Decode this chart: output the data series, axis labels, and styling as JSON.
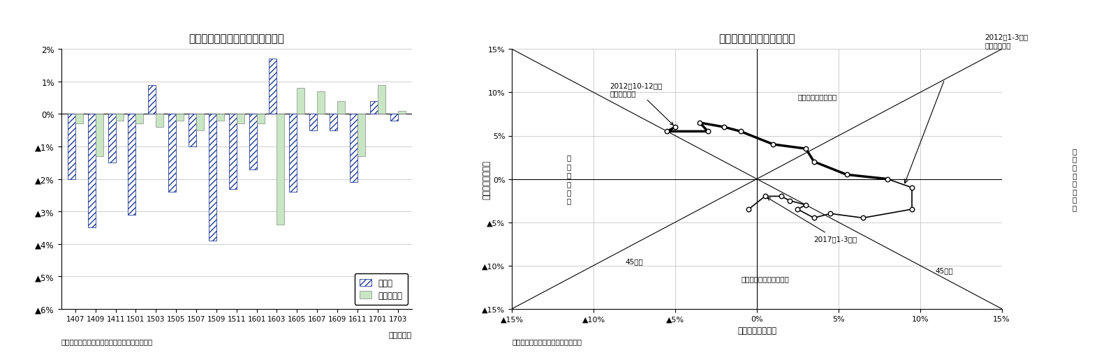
{
  "title_left": "最近の実現率、予測修正率の推移",
  "title_right": "在庫循環図（鉱工業全体）",
  "source_left": "（資料）経済産業省「製造工業生産予測指数」",
  "source_right": "（資料）経済産業省「鉱工業指数」",
  "xlabel_left": "（年・月）",
  "xlabel_right": "出荷・前年同期比",
  "ylabel_right": "在庫・前年同期比",
  "bar_categories": [
    "1407",
    "1409",
    "1411",
    "1501",
    "1503",
    "1505",
    "1507",
    "1509",
    "1511",
    "1601",
    "1603",
    "1605",
    "1607",
    "1609",
    "1611",
    "1701",
    "1703"
  ],
  "jitsugenritsu": [
    -2.0,
    -3.5,
    -1.5,
    -3.1,
    0.9,
    -2.4,
    -1.0,
    -3.9,
    -2.3,
    -1.7,
    1.7,
    -2.4,
    -0.5,
    -0.5,
    -2.1,
    0.4,
    -0.2
  ],
  "yosoku": [
    -0.3,
    -1.3,
    -0.2,
    -0.3,
    -0.4,
    -0.2,
    -0.5,
    -0.2,
    -0.3,
    -0.3,
    -3.4,
    0.8,
    0.7,
    0.4,
    -1.3,
    0.9,
    0.1
  ],
  "legend_label1": "実現率",
  "legend_label2": "予測修正率",
  "ylim_left": [
    -6,
    2
  ],
  "yticks_left": [
    2,
    1,
    0,
    -1,
    -2,
    -3,
    -4,
    -5,
    -6
  ],
  "ytick_labels_left": [
    "2%",
    "1%",
    "0%",
    "▲1%",
    "▲2%",
    "▲3%",
    "▲4%",
    "▲5%",
    "▲6%"
  ],
  "scatter_x": [
    -5.0,
    -5.5,
    -3.0,
    -3.5,
    -2.0,
    -1.0,
    1.0,
    3.0,
    3.5,
    5.5,
    8.0,
    9.5,
    9.5,
    6.5,
    4.5,
    3.5,
    2.5,
    3.0,
    2.0,
    1.5,
    0.5,
    -0.5
  ],
  "scatter_y": [
    6.0,
    5.5,
    5.5,
    6.5,
    6.0,
    5.5,
    4.0,
    3.5,
    2.0,
    0.5,
    0.0,
    -1.0,
    -3.5,
    -4.5,
    -4.0,
    -4.5,
    -3.5,
    -3.0,
    -2.5,
    -2.0,
    -2.0,
    -3.5
  ],
  "scatter_bold_x": [
    -5.0,
    -5.5,
    -3.0,
    -3.5,
    -2.0,
    -1.0,
    1.0,
    3.0,
    3.5,
    5.5,
    8.0
  ],
  "scatter_bold_y": [
    6.0,
    5.5,
    5.5,
    6.5,
    6.0,
    5.5,
    4.0,
    3.5,
    2.0,
    0.5,
    0.0
  ],
  "scatter_thin_x": [
    8.0,
    9.5,
    9.5,
    6.5,
    4.5,
    3.5,
    2.5,
    3.0,
    2.0,
    1.5,
    0.5,
    -0.5
  ],
  "scatter_thin_y": [
    0.0,
    -1.0,
    -3.5,
    -4.5,
    -4.0,
    -4.5,
    -3.5,
    -3.0,
    -2.5,
    -2.0,
    -2.0,
    -3.5
  ],
  "xlim_right": [
    -15,
    15
  ],
  "ylim_right": [
    -15,
    15
  ],
  "xticks_right": [
    -15,
    -10,
    -5,
    0,
    5,
    10,
    15
  ],
  "yticks_right": [
    -15,
    -10,
    -5,
    0,
    5,
    10,
    15
  ],
  "xtick_labels_right": [
    "▲15%",
    "▲10%",
    "▲5%",
    "0%",
    "5%",
    "10%",
    "15%"
  ],
  "ytick_labels_right": [
    "▲15%",
    "▲10%",
    "▲5%",
    "0%",
    "5%",
    "10%",
    "15%"
  ],
  "bg_color": "#ffffff",
  "bar_hatch_color": "#1f3a93",
  "bar_green_color": "#c8e6c4",
  "bar_green_edge": "#888888"
}
